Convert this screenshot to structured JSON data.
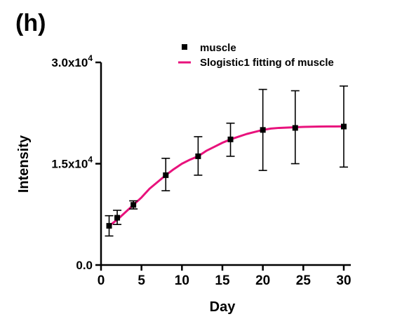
{
  "panel_label": "(h)",
  "colors": {
    "fit": "#e8127c",
    "marker": "#000000",
    "error_bar": "#000000",
    "axis": "#000000"
  },
  "chart_data": {
    "type": "scatter",
    "xlabel": "Day",
    "ylabel": "Intensity",
    "xlim": [
      0,
      30
    ],
    "ylim": [
      0,
      30000
    ],
    "x_ticks": [
      0,
      5,
      10,
      15,
      20,
      25,
      30
    ],
    "x_tick_labels": [
      "0",
      "5",
      "10",
      "15",
      "20",
      "25",
      "30"
    ],
    "y_ticks": [
      0,
      15000,
      30000
    ],
    "y_tick_labels": [
      {
        "mantissa": "0.0",
        "exponent": ""
      },
      {
        "mantissa": "1.5x10",
        "exponent": "4"
      },
      {
        "mantissa": "3.0x10",
        "exponent": "4"
      }
    ],
    "legend_position": "top-right",
    "grid": false,
    "series": [
      {
        "name": "muscle",
        "kind": "points",
        "marker": "square",
        "x": [
          1,
          2,
          4,
          8,
          12,
          16,
          20,
          24,
          30
        ],
        "y": [
          5800,
          7000,
          8900,
          13300,
          16100,
          18600,
          20000,
          20300,
          20500
        ],
        "err_low": [
          4300,
          6000,
          8300,
          11000,
          13300,
          16100,
          14000,
          15000,
          14500
        ],
        "err_high": [
          7300,
          8100,
          9500,
          15800,
          19000,
          21000,
          26000,
          25800,
          26500
        ]
      },
      {
        "name": "Slogistic1 fitting of muscle",
        "kind": "line",
        "x": [
          1,
          2,
          3,
          4,
          5,
          6,
          7,
          8,
          9,
          10,
          11,
          12,
          13,
          14,
          15,
          16,
          17,
          18,
          19,
          20,
          21,
          22,
          23,
          24,
          25,
          26,
          27,
          28,
          29,
          30
        ],
        "y": [
          5800,
          6700,
          7800,
          8900,
          10000,
          11300,
          12300,
          13300,
          14200,
          15000,
          15600,
          16100,
          16900,
          17500,
          18100,
          18600,
          19000,
          19400,
          19700,
          20000,
          20200,
          20300,
          20350,
          20400,
          20450,
          20480,
          20500,
          20510,
          20520,
          20530
        ]
      }
    ]
  }
}
